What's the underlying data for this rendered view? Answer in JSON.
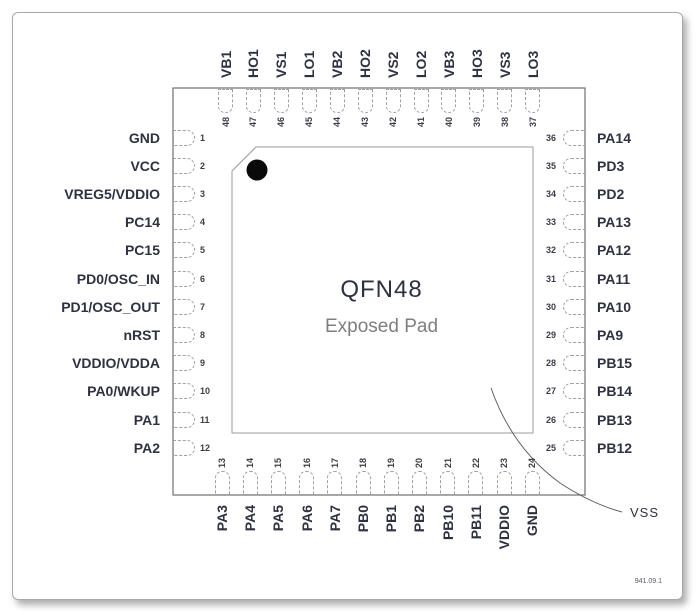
{
  "figure": {
    "package_name": "QFN48",
    "pad_label": "Exposed Pad",
    "pad_net_label": "VSS",
    "doc_number": "941.09.1"
  },
  "colors": {
    "pin_label": "#2e3140",
    "pin_number": "#3b3d49",
    "package_outline": "#6f6f6f",
    "pad_outline": "#9b9b9b",
    "pad_text": "#7f7f7f",
    "leader_line": "#606060",
    "pin1_dot": "#0a0a0a",
    "card_border": "#a9a9a9"
  },
  "pins": {
    "top": [
      {
        "num": "48",
        "label": "VB1"
      },
      {
        "num": "47",
        "label": "HO1"
      },
      {
        "num": "46",
        "label": "VS1"
      },
      {
        "num": "45",
        "label": "LO1"
      },
      {
        "num": "44",
        "label": "VB2"
      },
      {
        "num": "43",
        "label": "HO2"
      },
      {
        "num": "42",
        "label": "VS2"
      },
      {
        "num": "41",
        "label": "LO2"
      },
      {
        "num": "40",
        "label": "VB3"
      },
      {
        "num": "39",
        "label": "HO3"
      },
      {
        "num": "38",
        "label": "VS3"
      },
      {
        "num": "37",
        "label": "LO3"
      }
    ],
    "left": [
      {
        "num": "1",
        "label": "GND"
      },
      {
        "num": "2",
        "label": "VCC"
      },
      {
        "num": "3",
        "label": "VREG5/VDDIO"
      },
      {
        "num": "4",
        "label": "PC14"
      },
      {
        "num": "5",
        "label": "PC15"
      },
      {
        "num": "6",
        "label": "PD0/OSC_IN"
      },
      {
        "num": "7",
        "label": "PD1/OSC_OUT"
      },
      {
        "num": "8",
        "label": "nRST"
      },
      {
        "num": "9",
        "label": "VDDIO/VDDA"
      },
      {
        "num": "10",
        "label": "PA0/WKUP"
      },
      {
        "num": "11",
        "label": "PA1"
      },
      {
        "num": "12",
        "label": "PA2"
      }
    ],
    "right": [
      {
        "num": "36",
        "label": "PA14"
      },
      {
        "num": "35",
        "label": "PD3"
      },
      {
        "num": "34",
        "label": "PD2"
      },
      {
        "num": "33",
        "label": "PA13"
      },
      {
        "num": "32",
        "label": "PA12"
      },
      {
        "num": "31",
        "label": "PA11"
      },
      {
        "num": "30",
        "label": "PA10"
      },
      {
        "num": "29",
        "label": "PA9"
      },
      {
        "num": "28",
        "label": "PB15"
      },
      {
        "num": "27",
        "label": "PB14"
      },
      {
        "num": "26",
        "label": "PB13"
      },
      {
        "num": "25",
        "label": "PB12"
      }
    ],
    "bottom": [
      {
        "num": "13",
        "label": "PA3"
      },
      {
        "num": "14",
        "label": "PA4"
      },
      {
        "num": "15",
        "label": "PA5"
      },
      {
        "num": "16",
        "label": "PA6"
      },
      {
        "num": "17",
        "label": "PA7"
      },
      {
        "num": "18",
        "label": "PB0"
      },
      {
        "num": "19",
        "label": "PB1"
      },
      {
        "num": "20",
        "label": "PB2"
      },
      {
        "num": "21",
        "label": "PB10"
      },
      {
        "num": "22",
        "label": "PB11"
      },
      {
        "num": "23",
        "label": "VDDIO"
      },
      {
        "num": "24",
        "label": "GND"
      }
    ]
  }
}
